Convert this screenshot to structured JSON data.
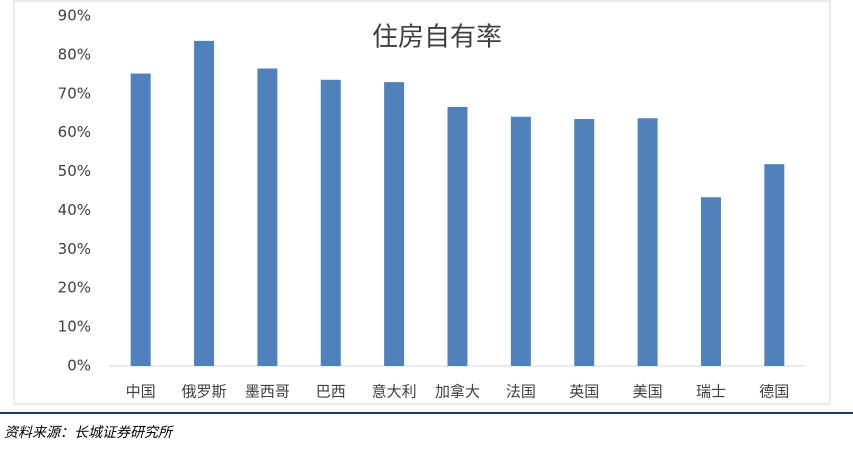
{
  "chart_data": {
    "type": "bar",
    "title": "住房自有率",
    "categories": [
      "中国",
      "俄罗斯",
      "墨西哥",
      "巴西",
      "意大利",
      "加拿大",
      "法国",
      "英国",
      "美国",
      "瑞士",
      "德国"
    ],
    "values": [
      75.2,
      83.6,
      76.5,
      73.6,
      73.0,
      66.6,
      64.1,
      63.5,
      63.7,
      43.4,
      51.9
    ],
    "color": "#4f81bd",
    "ylim": [
      0,
      90
    ],
    "yticks": [
      {
        "value": 0,
        "label": "0%"
      },
      {
        "value": 10,
        "label": "10%"
      },
      {
        "value": 20,
        "label": "20%"
      },
      {
        "value": 30,
        "label": "30%"
      },
      {
        "value": 40,
        "label": "40%"
      },
      {
        "value": 50,
        "label": "50%"
      },
      {
        "value": 60,
        "label": "60%"
      },
      {
        "value": 70,
        "label": "70%"
      },
      {
        "value": 80,
        "label": "80%"
      },
      {
        "value": 90,
        "label": "90%"
      }
    ],
    "grid": false,
    "source": "资料来源：长城证券研究所"
  }
}
